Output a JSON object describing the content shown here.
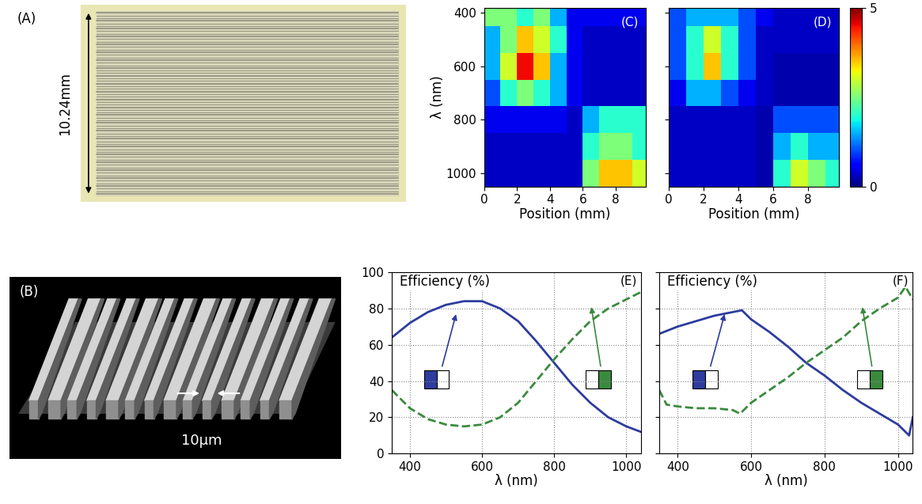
{
  "chart_data": [
    {
      "type": "image",
      "label": "(A)",
      "annotations": [
        "10.24mm"
      ]
    },
    {
      "type": "image",
      "label": "(B)",
      "annotations": [
        "10μm"
      ]
    },
    {
      "type": "heatmap",
      "label": "(C)",
      "x_label": "Position (mm)",
      "y_label": "λ (nm)",
      "x": [
        0.5,
        1.5,
        2.5,
        3.5,
        4.5,
        5.5,
        6.5,
        7.5,
        8.5,
        9.5
      ],
      "y": [
        400,
        500,
        600,
        700,
        800,
        900,
        1000
      ],
      "cells": [
        [
          2.5,
          2.5,
          2,
          2.5,
          1.5,
          0.5,
          0.5,
          0.5,
          0.5,
          0.5
        ],
        [
          1.5,
          2.5,
          3.5,
          3,
          2,
          0.5,
          0.3,
          0.3,
          0.3,
          0.3
        ],
        [
          1.5,
          3,
          4.5,
          3.5,
          1.5,
          0.5,
          0.3,
          0.3,
          0.3,
          0.3
        ],
        [
          1,
          2,
          2.5,
          2,
          1.5,
          0.5,
          0.3,
          0.3,
          0.3,
          0.3
        ],
        [
          0.5,
          0.5,
          0.5,
          0.5,
          0.5,
          0.3,
          1.5,
          2,
          2,
          2
        ],
        [
          0.3,
          0.3,
          0.3,
          0.3,
          0.3,
          0.3,
          2,
          2.5,
          2.5,
          2
        ],
        [
          0.3,
          0.3,
          0.3,
          0.3,
          0.3,
          0.3,
          2.5,
          3.5,
          3.5,
          3
        ]
      ],
      "xlim": [
        0,
        9.8
      ],
      "xticks": [
        0,
        2,
        4,
        6,
        8
      ],
      "ylim": [
        1050,
        380
      ],
      "yticks": [
        400,
        600,
        800,
        1000
      ]
    },
    {
      "type": "heatmap",
      "label": "(D)",
      "x_label": "Position (mm)",
      "tick_labels": "x",
      "x": [
        0.5,
        1.5,
        2.5,
        3.5,
        4.5,
        5.5,
        6.5,
        7.5,
        8.5,
        9.5
      ],
      "y": [
        400,
        500,
        600,
        700,
        800,
        900,
        1000
      ],
      "cells": [
        [
          1,
          1.5,
          1.5,
          1.5,
          1,
          0.5,
          0.3,
          0.3,
          0.3,
          0.3
        ],
        [
          1,
          2,
          3,
          2,
          1,
          0.3,
          0.3,
          0.3,
          0.3,
          0.3
        ],
        [
          1,
          2,
          3.5,
          2,
          1,
          0.3,
          0.2,
          0.2,
          0.2,
          0.2
        ],
        [
          0.5,
          1.5,
          1.5,
          1,
          0.5,
          0.3,
          0.2,
          0.2,
          0.2,
          0.2
        ],
        [
          0.3,
          0.3,
          0.3,
          0.3,
          0.3,
          0.2,
          1,
          1,
          1,
          1
        ],
        [
          0.3,
          0.3,
          0.3,
          0.3,
          0.3,
          0.2,
          1.5,
          2,
          1.5,
          1.5
        ],
        [
          0.3,
          0.3,
          0.3,
          0.3,
          0.3,
          0.2,
          2,
          3,
          2.5,
          2
        ]
      ],
      "xlim": [
        0,
        9.8
      ],
      "xticks": [
        0,
        2,
        4,
        6,
        8
      ],
      "ylim": [
        1050,
        380
      ],
      "yticks": [
        400,
        600,
        800,
        1000
      ],
      "colorbar": {
        "range": [
          0,
          5
        ],
        "ticks": [
          0,
          5
        ]
      }
    },
    {
      "type": "line",
      "label": "(E)",
      "y_label": "Efficiency (%)",
      "x_label": "λ (nm)",
      "grid": true,
      "xlim": [
        350,
        1040
      ],
      "xticks": [
        400,
        600,
        800,
        1000
      ],
      "ylim": [
        0,
        100
      ],
      "yticks": [
        0,
        20,
        40,
        60,
        80,
        100
      ],
      "series": [
        {
          "color": "#2d3c9e",
          "line_style": "solid",
          "x": [
            350,
            400,
            450,
            500,
            550,
            600,
            650,
            700,
            750,
            800,
            850,
            900,
            950,
            1000,
            1040
          ],
          "values": [
            64,
            72,
            78,
            82,
            84,
            84,
            80,
            73,
            62,
            50,
            38,
            28,
            20,
            15,
            12
          ]
        },
        {
          "color": "#3a8a3e",
          "line_style": "dashed",
          "x": [
            350,
            400,
            450,
            500,
            550,
            600,
            650,
            700,
            750,
            800,
            850,
            900,
            950,
            1000,
            1040
          ],
          "values": [
            35,
            25,
            19,
            16,
            15,
            16,
            20,
            28,
            40,
            52,
            63,
            73,
            80,
            85,
            89
          ]
        }
      ]
    },
    {
      "type": "line",
      "label": "(F)",
      "y_label": "Efficiency (%)",
      "x_label": "λ (nm)",
      "grid": true,
      "tick_labels": "x",
      "xlim": [
        350,
        1040
      ],
      "xticks": [
        400,
        600,
        800,
        1000
      ],
      "ylim": [
        0,
        100
      ],
      "yticks": [
        0,
        20,
        40,
        60,
        80,
        100
      ],
      "series": [
        {
          "color": "#2d3c9e",
          "line_style": "solid",
          "x": [
            350,
            400,
            450,
            500,
            550,
            575,
            600,
            650,
            700,
            750,
            800,
            850,
            900,
            950,
            1000,
            1030,
            1040
          ],
          "values": [
            66,
            70,
            73,
            76,
            78,
            79,
            74,
            67,
            59,
            50,
            43,
            35,
            28,
            22,
            16,
            10,
            20
          ]
        },
        {
          "color": "#3a8a3e",
          "line_style": "dashed",
          "x": [
            350,
            370,
            400,
            450,
            500,
            550,
            570,
            600,
            650,
            700,
            750,
            800,
            850,
            900,
            950,
            1000,
            1020,
            1040
          ],
          "values": [
            35,
            27,
            26,
            25,
            25,
            24,
            22,
            28,
            35,
            42,
            50,
            57,
            64,
            73,
            80,
            86,
            92,
            85
          ]
        }
      ]
    }
  ]
}
